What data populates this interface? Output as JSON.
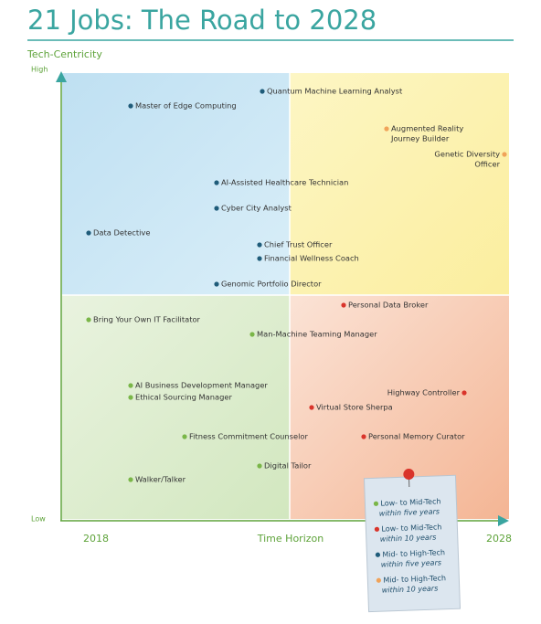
{
  "title": "21 Jobs: The Road to 2028",
  "y_axis": {
    "label": "Tech-Centricity",
    "high": "High",
    "low": "Low"
  },
  "x_axis": {
    "label": "Time Horizon",
    "start": "2018",
    "end": "2028"
  },
  "legend": {
    "items": [
      {
        "line1": "Low- to Mid-Tech",
        "line2": "within five years",
        "color": "#7ab648"
      },
      {
        "line1": "Low- to Mid-Tech",
        "line2": "within 10 years",
        "color": "#d9342b"
      },
      {
        "line1": "Mid- to High-Tech",
        "line2": "within five years",
        "color": "#1f5c7a"
      },
      {
        "line1": "Mid- to High-Tech",
        "line2": "within 10 years",
        "color": "#f0a35a"
      }
    ]
  },
  "jobs": [
    {
      "label": [
        "Quantum Machine Learning Analyst"
      ],
      "group": 2
    },
    {
      "label": [
        "Master of Edge Computing"
      ],
      "group": 2
    },
    {
      "label": [
        "Augmented Reality",
        "Journey Builder"
      ],
      "group": 3
    },
    {
      "label": [
        "Genetic Diversity",
        "Officer"
      ],
      "group": 3
    },
    {
      "label": [
        "AI-Assisted Healthcare Technician"
      ],
      "group": 2
    },
    {
      "label": [
        "Cyber City Analyst"
      ],
      "group": 2
    },
    {
      "label": [
        "Data Detective"
      ],
      "group": 2
    },
    {
      "label": [
        "Chief Trust Officer"
      ],
      "group": 2
    },
    {
      "label": [
        "Financial Wellness Coach"
      ],
      "group": 2
    },
    {
      "label": [
        "Genomic Portfolio Director"
      ],
      "group": 2
    },
    {
      "label": [
        "Personal Data Broker"
      ],
      "group": 1
    },
    {
      "label": [
        "Bring Your Own IT Facilitator"
      ],
      "group": 0
    },
    {
      "label": [
        "Man-Machine Teaming Manager"
      ],
      "group": 0
    },
    {
      "label": [
        "AI Business Development Manager"
      ],
      "group": 0
    },
    {
      "label": [
        "Ethical Sourcing Manager"
      ],
      "group": 0
    },
    {
      "label": [
        "Highway Controller"
      ],
      "group": 1
    },
    {
      "label": [
        "Virtual Store Sherpa"
      ],
      "group": 1
    },
    {
      "label": [
        "Fitness Commitment Counselor"
      ],
      "group": 0
    },
    {
      "label": [
        "Personal Memory Curator"
      ],
      "group": 1
    },
    {
      "label": [
        "Digital Tailor"
      ],
      "group": 0
    },
    {
      "label": [
        "Walker/Talker"
      ],
      "group": 0
    }
  ]
}
